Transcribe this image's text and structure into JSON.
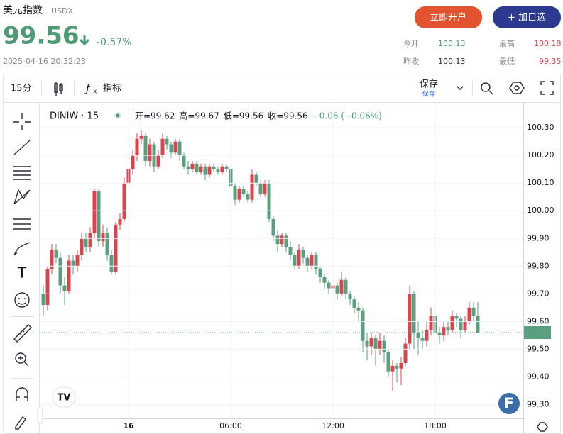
{
  "header": {
    "title": "美元指数",
    "code": "USDX",
    "price": "99.56",
    "change": "-0.57%",
    "datetime": "2025-04-16 20:32:23",
    "open_account": "立即开户",
    "add_watch": "+ 加自选",
    "stats": [
      {
        "label": "今开",
        "value": "100.13"
      },
      {
        "label": "最高",
        "value": "100.18"
      },
      {
        "label": "昨收",
        "value": "100.13"
      },
      {
        "label": "最低",
        "value": "99.35"
      }
    ]
  },
  "toolbar": {
    "interval": "15分",
    "indicators": "指标",
    "save": "保存",
    "save_sub": "保存"
  },
  "chart_data": {
    "type": "candlestick",
    "symbol": "DINIW · 15",
    "legend": [
      "开=99.62",
      "高=99.67",
      "低=99.56",
      "收=99.56",
      "−0.06 (−0.06%)"
    ],
    "up_color": "#d9454f",
    "down_color": "#5b9f7f",
    "grid": true,
    "ylim": [
      99.25,
      100.39
    ],
    "yticks": [
      {
        "value": 99.3,
        "label": "99.30"
      },
      {
        "value": 99.4,
        "label": "99.40"
      },
      {
        "value": 99.5,
        "label": "99.50"
      },
      {
        "value": 99.6,
        "label": "99.60"
      },
      {
        "value": 99.7,
        "label": "99.70"
      },
      {
        "value": 99.8,
        "label": "99.80"
      },
      {
        "value": 99.9,
        "label": "99.90"
      },
      {
        "value": 100.0,
        "label": "100.00"
      },
      {
        "value": 100.1,
        "label": "100.10"
      },
      {
        "value": 100.2,
        "label": "100.20"
      },
      {
        "value": 100.3,
        "label": "100.30"
      }
    ],
    "last_price": 99.56,
    "categories": [
      null,
      null,
      null,
      null,
      null,
      null,
      null,
      null,
      null,
      null,
      null,
      null,
      null,
      null,
      null,
      null,
      null,
      null,
      null,
      null,
      "16",
      null,
      null,
      null,
      null,
      null,
      null,
      null,
      null,
      null,
      null,
      null,
      null,
      null,
      null,
      null,
      null,
      null,
      null,
      null,
      null,
      null,
      null,
      null,
      "06:00",
      null,
      null,
      null,
      null,
      null,
      null,
      null,
      null,
      null,
      null,
      null,
      null,
      null,
      null,
      null,
      null,
      null,
      null,
      null,
      null,
      null,
      null,
      null,
      "12:00",
      null,
      null,
      null,
      null,
      null,
      null,
      null,
      null,
      null,
      null,
      null,
      null,
      null,
      null,
      null,
      null,
      null,
      null,
      null,
      null,
      null,
      null,
      null,
      "18:00",
      null,
      null,
      null,
      null,
      null,
      null,
      null,
      null,
      null,
      null
    ],
    "candles": [
      [
        99.7,
        99.73,
        99.62,
        99.66
      ],
      [
        99.66,
        99.8,
        99.64,
        99.79
      ],
      [
        99.79,
        99.88,
        99.77,
        99.86
      ],
      [
        99.86,
        99.88,
        99.81,
        99.83
      ],
      [
        99.83,
        99.85,
        99.7,
        99.73
      ],
      [
        99.73,
        99.76,
        99.66,
        99.71
      ],
      [
        99.71,
        99.84,
        99.7,
        99.82
      ],
      [
        99.82,
        99.84,
        99.77,
        99.8
      ],
      [
        99.8,
        99.86,
        99.78,
        99.84
      ],
      [
        99.84,
        99.92,
        99.82,
        99.9
      ],
      [
        99.9,
        99.92,
        99.85,
        99.87
      ],
      [
        99.87,
        99.94,
        99.85,
        99.92
      ],
      [
        99.92,
        100.08,
        99.9,
        100.07
      ],
      [
        100.07,
        100.08,
        99.87,
        99.89
      ],
      [
        99.89,
        99.95,
        99.87,
        99.92
      ],
      [
        99.92,
        99.94,
        99.82,
        99.84
      ],
      [
        99.84,
        99.86,
        99.77,
        99.78
      ],
      [
        99.78,
        99.96,
        99.77,
        99.95
      ],
      [
        99.95,
        99.99,
        99.93,
        99.97
      ],
      [
        99.97,
        100.12,
        99.96,
        100.1
      ],
      [
        100.1,
        100.17,
        100.08,
        100.15
      ],
      [
        100.15,
        100.22,
        100.13,
        100.2
      ],
      [
        100.2,
        100.28,
        100.18,
        100.26
      ],
      [
        100.26,
        100.29,
        100.24,
        100.27
      ],
      [
        100.27,
        100.28,
        100.16,
        100.18
      ],
      [
        100.18,
        100.26,
        100.16,
        100.24
      ],
      [
        100.24,
        100.25,
        100.14,
        100.16
      ],
      [
        100.16,
        100.22,
        100.15,
        100.2
      ],
      [
        100.2,
        100.28,
        100.19,
        100.26
      ],
      [
        100.26,
        100.27,
        100.22,
        100.24
      ],
      [
        100.24,
        100.25,
        100.19,
        100.21
      ],
      [
        100.21,
        100.26,
        100.2,
        100.25
      ],
      [
        100.25,
        100.26,
        100.18,
        100.2
      ],
      [
        100.2,
        100.21,
        100.15,
        100.16
      ],
      [
        100.16,
        100.18,
        100.13,
        100.15
      ],
      [
        100.15,
        100.18,
        100.14,
        100.17
      ],
      [
        100.17,
        100.18,
        100.13,
        100.14
      ],
      [
        100.14,
        100.17,
        100.13,
        100.16
      ],
      [
        100.16,
        100.17,
        100.11,
        100.13
      ],
      [
        100.13,
        100.17,
        100.12,
        100.16
      ],
      [
        100.16,
        100.17,
        100.14,
        100.15
      ],
      [
        100.15,
        100.16,
        100.13,
        100.14
      ],
      [
        100.14,
        100.17,
        100.13,
        100.16
      ],
      [
        100.16,
        100.17,
        100.14,
        100.15
      ],
      [
        100.15,
        100.16,
        100.07,
        100.09
      ],
      [
        100.09,
        100.1,
        100.02,
        100.04
      ],
      [
        100.04,
        100.09,
        100.03,
        100.08
      ],
      [
        100.08,
        100.09,
        100.05,
        100.06
      ],
      [
        100.06,
        100.07,
        100.03,
        100.04
      ],
      [
        100.04,
        100.15,
        100.03,
        100.13
      ],
      [
        100.13,
        100.14,
        100.09,
        100.1
      ],
      [
        100.1,
        100.11,
        100.05,
        100.06
      ],
      [
        100.06,
        100.11,
        100.05,
        100.1
      ],
      [
        100.1,
        100.11,
        99.96,
        99.97
      ],
      [
        99.97,
        99.98,
        99.89,
        99.91
      ],
      [
        99.91,
        99.93,
        99.85,
        99.88
      ],
      [
        99.88,
        99.92,
        99.87,
        99.91
      ],
      [
        99.91,
        99.92,
        99.85,
        99.87
      ],
      [
        99.87,
        99.89,
        99.82,
        99.84
      ],
      [
        99.84,
        99.85,
        99.79,
        99.8
      ],
      [
        99.8,
        99.88,
        99.79,
        99.86
      ],
      [
        99.86,
        99.87,
        99.81,
        99.83
      ],
      [
        99.83,
        99.84,
        99.78,
        99.8
      ],
      [
        99.8,
        99.85,
        99.79,
        99.84
      ],
      [
        99.84,
        99.85,
        99.77,
        99.79
      ],
      [
        99.79,
        99.8,
        99.74,
        99.76
      ],
      [
        99.76,
        99.77,
        99.72,
        99.74
      ],
      [
        99.74,
        99.75,
        99.7,
        99.72
      ],
      [
        99.72,
        99.75,
        99.71,
        99.73
      ],
      [
        99.73,
        99.74,
        99.68,
        99.7
      ],
      [
        99.7,
        99.78,
        99.69,
        99.75
      ],
      [
        99.75,
        99.76,
        99.68,
        99.7
      ],
      [
        99.7,
        99.71,
        99.66,
        99.68
      ],
      [
        99.68,
        99.69,
        99.63,
        99.65
      ],
      [
        99.65,
        99.67,
        99.6,
        99.64
      ],
      [
        99.64,
        99.65,
        99.49,
        99.53
      ],
      [
        99.53,
        99.56,
        99.46,
        99.51
      ],
      [
        99.51,
        99.56,
        99.48,
        99.54
      ],
      [
        99.54,
        99.55,
        99.44,
        99.5
      ],
      [
        99.5,
        99.56,
        99.48,
        99.53
      ],
      [
        99.53,
        99.55,
        99.45,
        99.49
      ],
      [
        99.49,
        99.5,
        99.4,
        99.42
      ],
      [
        99.42,
        99.46,
        99.35,
        99.44
      ],
      [
        99.44,
        99.45,
        99.38,
        99.43
      ],
      [
        99.43,
        99.47,
        99.37,
        99.45
      ],
      [
        99.45,
        99.54,
        99.44,
        99.52
      ],
      [
        99.52,
        99.73,
        99.5,
        99.7
      ],
      [
        99.7,
        99.71,
        99.5,
        99.56
      ],
      [
        99.56,
        99.6,
        99.48,
        99.54
      ],
      [
        99.54,
        99.57,
        99.5,
        99.53
      ],
      [
        99.53,
        99.6,
        99.51,
        99.57
      ],
      [
        99.57,
        99.65,
        99.55,
        99.62
      ],
      [
        99.62,
        99.63,
        99.52,
        99.56
      ],
      [
        99.56,
        99.58,
        99.52,
        99.55
      ],
      [
        99.55,
        99.6,
        99.53,
        99.58
      ],
      [
        99.58,
        99.6,
        99.55,
        99.57
      ],
      [
        99.57,
        99.64,
        99.56,
        99.62
      ],
      [
        99.62,
        99.63,
        99.58,
        99.61
      ],
      [
        99.61,
        99.62,
        99.54,
        99.57
      ],
      [
        99.57,
        99.62,
        99.56,
        99.6
      ],
      [
        99.6,
        99.67,
        99.59,
        99.65
      ],
      [
        99.65,
        99.67,
        99.6,
        99.62
      ],
      [
        99.62,
        99.67,
        99.56,
        99.56
      ]
    ]
  }
}
